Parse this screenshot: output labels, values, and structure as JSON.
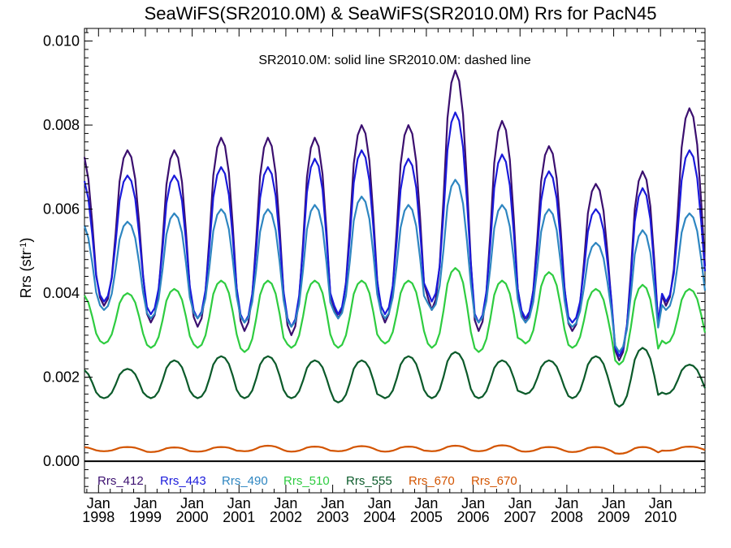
{
  "chart_data": {
    "type": "line",
    "title": "SeaWiFS(SR2010.0M) & SeaWiFS(SR2010.0M)  Rrs for PacN45",
    "annotation": "SR2010.0M: solid line   SR2010.0M: dashed line",
    "xlabel": "",
    "ylabel": "Rrs (str",
    "ylabel_sup": "-1",
    "ylabel_close": ")",
    "xlim": [
      1997.7,
      2010.95
    ],
    "ylim": [
      -0.00075,
      0.0103
    ],
    "yticks": [
      "0.000",
      "0.002",
      "0.004",
      "0.006",
      "0.008",
      "0.010"
    ],
    "ytick_values": [
      0,
      0.002,
      0.004,
      0.006,
      0.008,
      0.01
    ],
    "xticks": [
      {
        "top": "Jan",
        "bottom": "1998",
        "x": 1998
      },
      {
        "top": "Jan",
        "bottom": "1999",
        "x": 1999
      },
      {
        "top": "Jan",
        "bottom": "2000",
        "x": 2000
      },
      {
        "top": "Jan",
        "bottom": "2001",
        "x": 2001
      },
      {
        "top": "Jan",
        "bottom": "2002",
        "x": 2002
      },
      {
        "top": "Jan",
        "bottom": "2003",
        "x": 2003
      },
      {
        "top": "Jan",
        "bottom": "2004",
        "x": 2004
      },
      {
        "top": "Jan",
        "bottom": "2005",
        "x": 2005
      },
      {
        "top": "Jan",
        "bottom": "2006",
        "x": 2006
      },
      {
        "top": "Jan",
        "bottom": "2007",
        "x": 2007
      },
      {
        "top": "Jan",
        "bottom": "2008",
        "x": 2008
      },
      {
        "top": "Jan",
        "bottom": "2009",
        "x": 2009
      },
      {
        "top": "Jan",
        "bottom": "2010",
        "x": 2010
      }
    ],
    "zero_line": true,
    "grid": false,
    "legend_position": "bottom",
    "legend": [
      {
        "label": "Rrs_412",
        "color": "#3b0f6f"
      },
      {
        "label": "Rrs_443",
        "color": "#1a1adb"
      },
      {
        "label": "Rrs_490",
        "color": "#2e86c1"
      },
      {
        "label": "Rrs_510",
        "color": "#2ecc40"
      },
      {
        "label": "Rrs_555",
        "color": "#0b5a2a"
      },
      {
        "label": "Rrs_670",
        "color": "#d35400"
      },
      {
        "label": "Rrs_670",
        "color": "#d35400"
      }
    ],
    "series": [
      {
        "color": "#3b0f6f",
        "peaks": [
          0.0074,
          0.0074,
          0.0077,
          0.0077,
          0.0077,
          0.008,
          0.008,
          0.0093,
          0.0081,
          0.0075,
          0.0066,
          0.0069,
          0.0084
        ],
        "troughs": [
          0.0037,
          0.0033,
          0.0032,
          0.0031,
          0.003,
          0.0034,
          0.0033,
          0.0036,
          0.0031,
          0.0033,
          0.0031,
          0.0024,
          0.0037
        ]
      },
      {
        "color": "#1a1adb",
        "peaks": [
          0.0068,
          0.0068,
          0.007,
          0.007,
          0.0072,
          0.0074,
          0.0072,
          0.0083,
          0.0073,
          0.0069,
          0.006,
          0.0065,
          0.0074
        ],
        "troughs": [
          0.0038,
          0.0035,
          0.0034,
          0.0033,
          0.0032,
          0.0035,
          0.0035,
          0.0038,
          0.0033,
          0.0034,
          0.0033,
          0.0025,
          0.0038
        ]
      },
      {
        "color": "#2e86c1",
        "peaks": [
          0.0057,
          0.0059,
          0.006,
          0.006,
          0.0061,
          0.0063,
          0.0061,
          0.0067,
          0.0061,
          0.006,
          0.0052,
          0.0055,
          0.0059
        ],
        "troughs": [
          0.0036,
          0.0034,
          0.0034,
          0.0033,
          0.0032,
          0.0034,
          0.0034,
          0.0036,
          0.0033,
          0.0033,
          0.0032,
          0.0026,
          0.0036
        ]
      },
      {
        "color": "#2ecc40",
        "peaks": [
          0.004,
          0.0041,
          0.0043,
          0.0043,
          0.0043,
          0.0043,
          0.0043,
          0.0046,
          0.0043,
          0.0045,
          0.0041,
          0.0042,
          0.0041
        ],
        "troughs": [
          0.0028,
          0.0027,
          0.0027,
          0.0026,
          0.0027,
          0.0027,
          0.0028,
          0.0027,
          0.0026,
          0.0028,
          0.0027,
          0.0023,
          0.0028
        ]
      },
      {
        "color": "#0b5a2a",
        "peaks": [
          0.0022,
          0.0024,
          0.0025,
          0.0025,
          0.0024,
          0.0024,
          0.0025,
          0.0026,
          0.0024,
          0.0024,
          0.0025,
          0.0027,
          0.0023
        ],
        "troughs": [
          0.0015,
          0.0015,
          0.0015,
          0.0015,
          0.0015,
          0.0014,
          0.0015,
          0.0015,
          0.0015,
          0.0016,
          0.0015,
          0.0013,
          0.0016
        ]
      },
      {
        "color": "#d35400",
        "peaks": [
          0.00034,
          0.00033,
          0.00034,
          0.00037,
          0.00035,
          0.00036,
          0.00035,
          0.00037,
          0.00038,
          0.00034,
          0.00034,
          0.00034,
          0.00035
        ],
        "troughs": [
          0.00024,
          0.00022,
          0.00023,
          0.00024,
          0.00023,
          0.00024,
          0.00023,
          0.00024,
          0.00024,
          0.00023,
          0.00022,
          0.00018,
          0.00025
        ]
      }
    ]
  }
}
